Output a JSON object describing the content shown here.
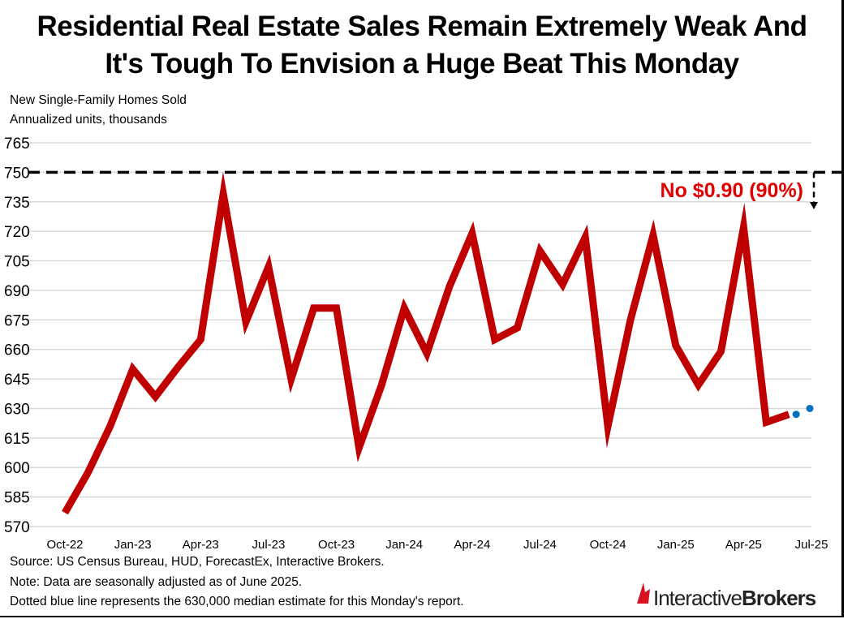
{
  "title_line1": "Residential Real Estate Sales Remain Extremely Weak And",
  "title_line2": "It's Tough To Envision a Huge Beat This Monday",
  "chart_data": {
    "type": "line",
    "subtitle1": "New Single-Family Homes Sold",
    "subtitle2": "Annualized units, thousands",
    "ylim": [
      570,
      765
    ],
    "yticks": [
      570,
      585,
      600,
      615,
      630,
      645,
      660,
      675,
      690,
      705,
      720,
      735,
      750,
      765
    ],
    "xtick_labels": [
      "Oct-22",
      "Jan-23",
      "Apr-23",
      "Jul-23",
      "Oct-23",
      "Jan-24",
      "Apr-24",
      "Jul-24",
      "Oct-24",
      "Jan-25",
      "Apr-25",
      "Jul-25"
    ],
    "grid": true,
    "x": [
      "Oct-22",
      "Nov-22",
      "Dec-22",
      "Jan-23",
      "Feb-23",
      "Mar-23",
      "Apr-23",
      "May-23",
      "Jun-23",
      "Jul-23",
      "Aug-23",
      "Sep-23",
      "Oct-23",
      "Nov-23",
      "Dec-23",
      "Jan-24",
      "Feb-24",
      "Mar-24",
      "Apr-24",
      "May-24",
      "Jun-24",
      "Jul-24",
      "Aug-24",
      "Sep-24",
      "Oct-24",
      "Nov-24",
      "Dec-24",
      "Jan-25",
      "Feb-25",
      "Mar-25",
      "Apr-25",
      "May-25",
      "Jun-25"
    ],
    "series": [
      {
        "values": [
          577,
          597,
          621,
          650,
          636,
          651,
          665,
          739,
          674,
          702,
          645,
          681,
          681,
          610,
          642,
          681,
          658,
          692,
          719,
          665,
          671,
          710,
          693,
          717,
          621,
          675,
          718,
          662,
          642,
          659,
          722,
          623,
          627
        ],
        "color": "#c00000"
      },
      {
        "x": [
          "Jun-25",
          "Jul-25"
        ],
        "values": [
          627,
          630
        ],
        "color": "#0070c0",
        "style": "dotted"
      }
    ],
    "threshold": {
      "value": 750,
      "label": "No $0.90 (90%)",
      "color": "#e00000",
      "style": "dashed"
    }
  },
  "notes": {
    "source": "Source: US Census Bureau, HUD, ForecastEx, Interactive Brokers.",
    "note": "Note: Data are seasonally adjusted as of June 2025.",
    "dotted": "Dotted blue line represents the 630,000 median estimate for this Monday's report."
  },
  "logo": {
    "part1": "Interactive",
    "part2": "Brokers",
    "color": "#d81222"
  }
}
